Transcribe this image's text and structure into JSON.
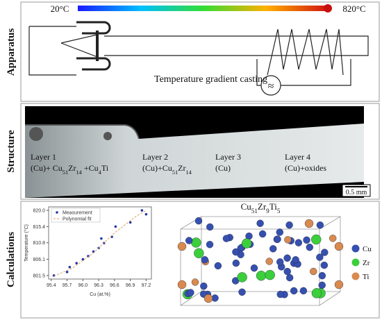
{
  "apparatus": {
    "label": "Apparatus",
    "temp_low": "20°C",
    "temp_high": "820°C",
    "caption": "Temperature gradient casting",
    "symbol": "≈"
  },
  "structure": {
    "label": "Structure",
    "layers": [
      {
        "name": "Layer 1",
        "phases": [
          "(Cu)+ Cu",
          "51",
          "Zr",
          "14",
          " +Cu",
          "4",
          "Ti"
        ]
      },
      {
        "name": "Layer 2",
        "phases": [
          "(Cu)+Cu",
          "51",
          "Zr",
          "14"
        ]
      },
      {
        "name": "Layer 3",
        "phases": [
          "(Cu)"
        ]
      },
      {
        "name": "Layer 4",
        "phases": [
          "(Cu)+oxides"
        ]
      }
    ],
    "scale_bar": "0.5 mm"
  },
  "calculations": {
    "label": "Calculations",
    "chart": {
      "type": "scatter",
      "x_label": "Cu (at.%)",
      "y_label": "Temperature (°C)",
      "xlim": [
        95.35,
        97.3
      ],
      "ylim": [
        800.5,
        821
      ],
      "xticks": [
        95.4,
        95.7,
        {
          "value": 96,
          "label": "96.0"
        },
        96.3,
        96.6,
        96.9,
        97.2
      ],
      "yticks": [
        801.5,
        806.1,
        810.8,
        815.4,
        {
          "value": 820,
          "label": "820.0"
        }
      ],
      "series": [
        {
          "name": "Measurement",
          "type": "scatter",
          "color": "#2436a8",
          "x": [
            95.45,
            95.7,
            95.75,
            95.88,
            96.0,
            96.1,
            96.2,
            96.3,
            96.35,
            96.4,
            96.55,
            96.62,
            96.9,
            97.12,
            97.2
          ],
          "values": [
            801.5,
            802.5,
            803.9,
            805.0,
            806.1,
            807.0,
            808.3,
            809.3,
            812.0,
            810.7,
            812.5,
            815.4,
            816.6,
            820.0,
            818.9
          ]
        },
        {
          "name": "Polynomial fit",
          "type": "line",
          "color": "#e0a060",
          "x": [
            95.45,
            95.8,
            96.2,
            96.6,
            97.0,
            97.2
          ],
          "values": [
            801.3,
            803.6,
            807.9,
            813.6,
            818.2,
            820.0
          ]
        }
      ]
    },
    "structure_title": [
      "Cu",
      "51",
      "Zr",
      "9",
      "Ti",
      "5"
    ],
    "atoms": [
      {
        "name": "Cu",
        "color": "#3650b0"
      },
      {
        "name": "Zr",
        "color": "#3ccf3c"
      },
      {
        "name": "Ti",
        "color": "#d88a50"
      }
    ]
  }
}
